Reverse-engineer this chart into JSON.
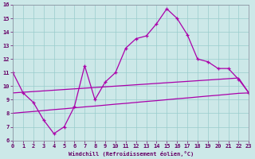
{
  "title": "",
  "xlabel": "Windchill (Refroidissement éolien,°C)",
  "bg_color": "#cce8e8",
  "line_color": "#aa00aa",
  "grid_color": "#99cccc",
  "x_min": 0,
  "x_max": 23,
  "y_min": 6,
  "y_max": 16,
  "x_ticks": [
    0,
    1,
    2,
    3,
    4,
    5,
    6,
    7,
    8,
    9,
    10,
    11,
    12,
    13,
    14,
    15,
    16,
    17,
    18,
    19,
    20,
    21,
    22,
    23
  ],
  "y_ticks": [
    6,
    7,
    8,
    9,
    10,
    11,
    12,
    13,
    14,
    15,
    16
  ],
  "series1_x": [
    0,
    1,
    2,
    3,
    4,
    5,
    6,
    7,
    8,
    9,
    10,
    11,
    12,
    13,
    14,
    15,
    16,
    17,
    18,
    19,
    20,
    21,
    22,
    23
  ],
  "series1_y": [
    11.0,
    9.5,
    8.8,
    7.5,
    6.5,
    7.0,
    8.5,
    11.5,
    9.0,
    10.3,
    11.0,
    12.8,
    13.5,
    13.7,
    14.6,
    15.7,
    15.0,
    13.8,
    12.0,
    11.8,
    11.3,
    11.3,
    10.5,
    9.5
  ],
  "series2_x": [
    0,
    1,
    2,
    3,
    4,
    5,
    6,
    7,
    8,
    9,
    10,
    11,
    12,
    13,
    14,
    15,
    16,
    17,
    18,
    19,
    20,
    21,
    22,
    23
  ],
  "series2_y": [
    9.5,
    9.55,
    9.6,
    9.65,
    9.7,
    9.75,
    9.8,
    9.85,
    9.9,
    9.95,
    10.0,
    10.05,
    10.1,
    10.15,
    10.2,
    10.25,
    10.3,
    10.35,
    10.4,
    10.45,
    10.5,
    10.55,
    10.6,
    9.5
  ],
  "series3_x": [
    0,
    1,
    2,
    3,
    4,
    5,
    6,
    7,
    8,
    9,
    10,
    11,
    12,
    13,
    14,
    15,
    16,
    17,
    18,
    19,
    20,
    21,
    22,
    23
  ],
  "series3_y": [
    8.0,
    8.07,
    8.13,
    8.2,
    8.27,
    8.33,
    8.4,
    8.47,
    8.53,
    8.6,
    8.67,
    8.73,
    8.8,
    8.87,
    8.93,
    9.0,
    9.07,
    9.13,
    9.2,
    9.27,
    9.33,
    9.4,
    9.47,
    9.5
  ],
  "marker": "+"
}
